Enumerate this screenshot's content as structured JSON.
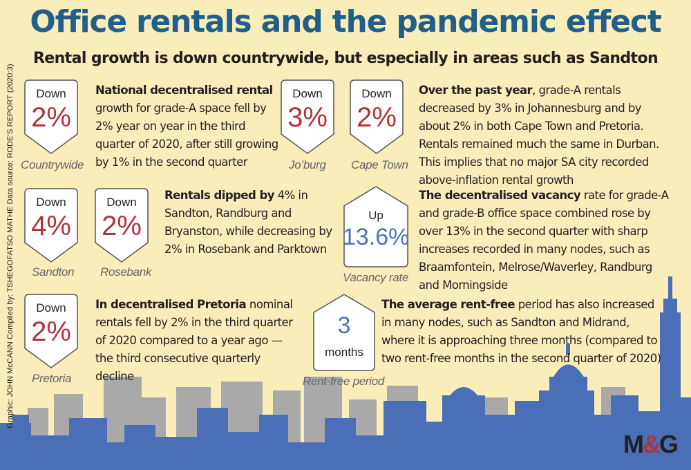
{
  "title": "Office rentals and the pandemic effect",
  "subtitle": "Rental growth is down countrywide, but especially in areas such as Sandton",
  "credit": "Graphic: JOHN McCANN  Compiled by: TSHEGOFATSO MATHE  Data source: RODE’S REPORT (2020:3)",
  "colors": {
    "background": "#f9edb9",
    "title": "#1f5f8a",
    "down_value": "#b0333a",
    "up_value": "#4c72b8",
    "skyline_front": "#4a6fb6",
    "skyline_back": "#a9a9a9"
  },
  "pins": [
    {
      "key": "countrywide",
      "label": "Down",
      "value": "2%",
      "caption": "Countrywide",
      "direction": "down"
    },
    {
      "key": "joburg",
      "label": "Down",
      "value": "3%",
      "caption": "Jo’burg",
      "direction": "down"
    },
    {
      "key": "capetown",
      "label": "Down",
      "value": "2%",
      "caption": "Cape Town",
      "direction": "down"
    },
    {
      "key": "sandton",
      "label": "Down",
      "value": "4%",
      "caption": "Sandton",
      "direction": "down"
    },
    {
      "key": "rosebank",
      "label": "Down",
      "value": "2%",
      "caption": "Rosebank",
      "direction": "down"
    },
    {
      "key": "vacancy",
      "label": "Up",
      "value": "13.6%",
      "caption": "Vacancy rate",
      "direction": "up"
    },
    {
      "key": "pretoria",
      "label": "Down",
      "value": "2%",
      "caption": "Pretoria",
      "direction": "down"
    },
    {
      "key": "rentfree",
      "label": "months",
      "value": "3",
      "caption": "Rent-free period",
      "direction": "up"
    }
  ],
  "paragraphs": {
    "national": {
      "bold": "National decentralised rental",
      "rest": " growth for grade-A space fell by 2% year on year in the third quarter of 2020, after still growing by 1% in the second quarter"
    },
    "cities": {
      "bold": "Over the past year",
      "rest": ", grade-A rentals decreased by 3% in Johannesburg and by about 2% in both Cape Town and Pretoria. Rentals remained much the same in Durban. This implies that no major SA city recorded above-inflation rental growth"
    },
    "sandton": {
      "bold": "Rentals dipped by",
      "rest": " 4% in Sandton, Randburg and Bryanston, while decreasing by 2% in Rosebank and Parktown"
    },
    "vacancy": {
      "bold": "The decentralised vacancy",
      "rest": " rate for grade-A and grade-B office space combined rose by over 13% in the second quarter with sharp increases recorded in many nodes, such as Braamfontein, Melrose/Waverley, Randburg and Morningside"
    },
    "pretoria": {
      "bold": "In decentralised Pretoria",
      "rest": " nominal rentals fell by 2% in the third quarter of 2020 compared to a year ago — the third consecutive quarterly decline"
    },
    "rentfree": {
      "bold": "The average rent-free",
      "rest": " period has also increased in many nodes, such as Sandton and Midrand, where it is approaching three months (compared to two rent-free months in the second quarter of 2020)"
    }
  },
  "logo": {
    "m": "M",
    "amp": "&",
    "g": "G"
  }
}
